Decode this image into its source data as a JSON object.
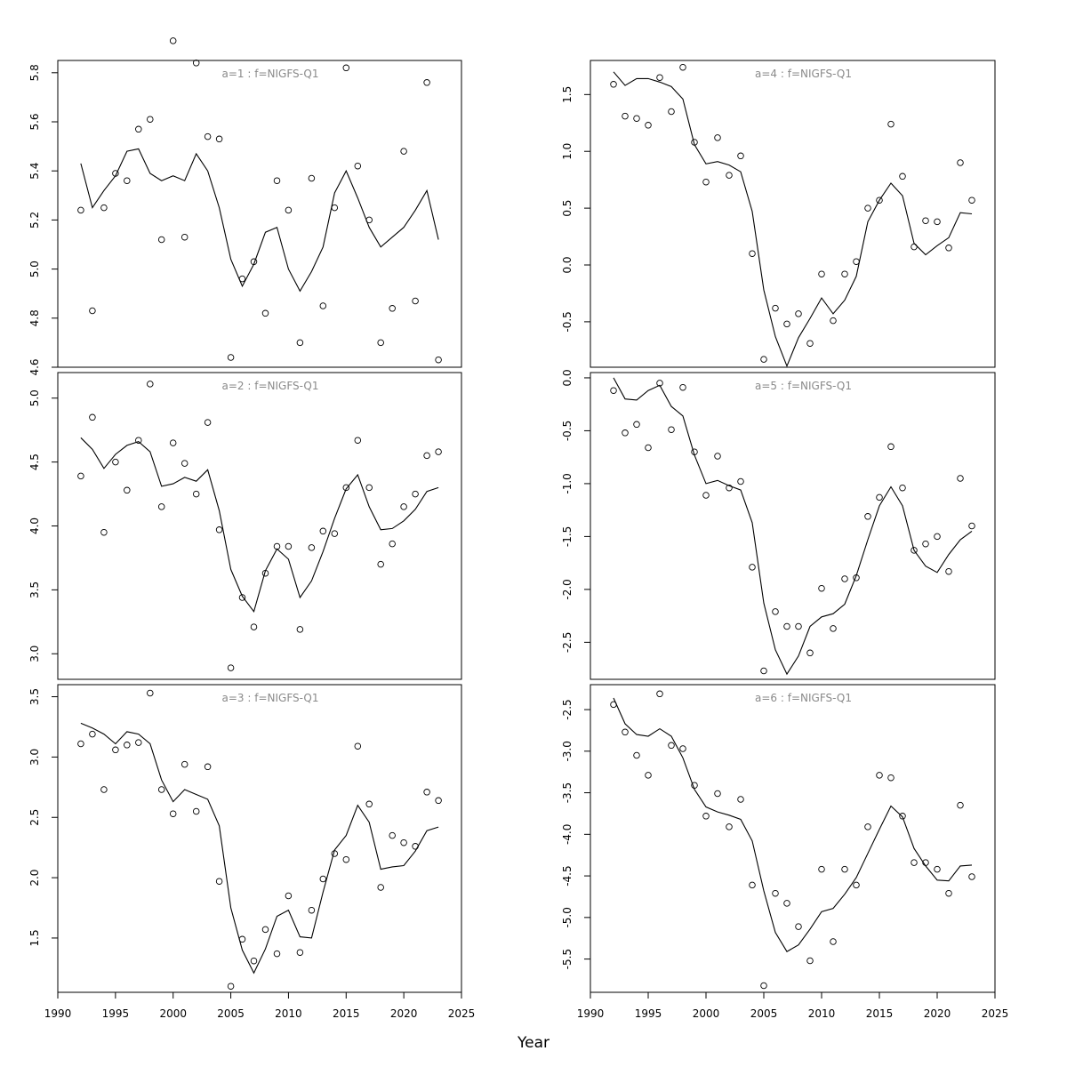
{
  "figure": {
    "xlabel": "Year"
  },
  "chart_data": [
    {
      "type": "line",
      "title": "a=1  :  f=NIGFS-Q1",
      "xlim": [
        1990,
        2025
      ],
      "ylim": [
        4.6,
        5.85
      ],
      "yticks": [
        4.6,
        4.8,
        5.0,
        5.2,
        5.4,
        5.6,
        5.8
      ],
      "xticks": [
        1990,
        1995,
        2000,
        2005,
        2010,
        2015,
        2020,
        2025
      ],
      "x": [
        1992,
        1993,
        1994,
        1995,
        1996,
        1997,
        1998,
        1999,
        2000,
        2001,
        2002,
        2003,
        2004,
        2005,
        2006,
        2007,
        2008,
        2009,
        2010,
        2011,
        2012,
        2013,
        2014,
        2015,
        2016,
        2017,
        2018,
        2019,
        2020,
        2021,
        2022,
        2023
      ],
      "series": [
        {
          "style": "points",
          "values": [
            5.24,
            4.83,
            5.25,
            5.39,
            5.36,
            5.57,
            5.61,
            5.12,
            5.93,
            5.13,
            5.84,
            5.54,
            5.53,
            4.64,
            4.96,
            5.03,
            4.82,
            5.36,
            5.24,
            4.7,
            5.37,
            4.85,
            5.25,
            5.82,
            5.42,
            5.2,
            4.7,
            4.84,
            5.48,
            4.87,
            5.76,
            4.63
          ]
        },
        {
          "style": "line",
          "values": [
            5.43,
            5.25,
            5.32,
            5.38,
            5.48,
            5.49,
            5.39,
            5.36,
            5.38,
            5.36,
            5.47,
            5.4,
            5.25,
            5.04,
            4.93,
            5.02,
            5.15,
            5.17,
            5.0,
            4.91,
            4.99,
            5.09,
            5.31,
            5.4,
            5.29,
            5.17,
            5.09,
            5.13,
            5.17,
            5.24,
            5.32,
            5.12
          ]
        }
      ]
    },
    {
      "type": "line",
      "title": "a=2  :  f=NIGFS-Q1",
      "xlim": [
        1990,
        2025
      ],
      "ylim": [
        2.8,
        5.2
      ],
      "yticks": [
        3.0,
        3.5,
        4.0,
        4.5,
        5.0
      ],
      "xticks": [
        1990,
        1995,
        2000,
        2005,
        2010,
        2015,
        2020,
        2025
      ],
      "x": [
        1992,
        1993,
        1994,
        1995,
        1996,
        1997,
        1998,
        1999,
        2000,
        2001,
        2002,
        2003,
        2004,
        2005,
        2006,
        2007,
        2008,
        2009,
        2010,
        2011,
        2012,
        2013,
        2014,
        2015,
        2016,
        2017,
        2018,
        2019,
        2020,
        2021,
        2022,
        2023
      ],
      "series": [
        {
          "style": "points",
          "values": [
            4.39,
            4.85,
            3.95,
            4.5,
            4.28,
            4.67,
            5.11,
            4.15,
            4.65,
            4.49,
            4.25,
            4.81,
            3.97,
            2.89,
            3.44,
            3.21,
            3.63,
            3.84,
            3.84,
            3.19,
            3.83,
            3.96,
            3.94,
            4.3,
            4.67,
            4.3,
            3.7,
            3.86,
            4.15,
            4.25,
            4.55,
            4.58
          ]
        },
        {
          "style": "line",
          "values": [
            4.69,
            4.6,
            4.45,
            4.56,
            4.63,
            4.66,
            4.58,
            4.31,
            4.33,
            4.38,
            4.35,
            4.44,
            4.12,
            3.66,
            3.45,
            3.33,
            3.65,
            3.82,
            3.74,
            3.44,
            3.57,
            3.8,
            4.06,
            4.29,
            4.4,
            4.15,
            3.97,
            3.98,
            4.04,
            4.13,
            4.27,
            4.3
          ]
        }
      ]
    },
    {
      "type": "line",
      "title": "a=3  :  f=NIGFS-Q1",
      "xlim": [
        1990,
        2025
      ],
      "ylim": [
        1.05,
        3.6
      ],
      "yticks": [
        1.5,
        2.0,
        2.5,
        3.0,
        3.5
      ],
      "xticks": [
        1990,
        1995,
        2000,
        2005,
        2010,
        2015,
        2020,
        2025
      ],
      "x": [
        1992,
        1993,
        1994,
        1995,
        1996,
        1997,
        1998,
        1999,
        2000,
        2001,
        2002,
        2003,
        2004,
        2005,
        2006,
        2007,
        2008,
        2009,
        2010,
        2011,
        2012,
        2013,
        2014,
        2015,
        2016,
        2017,
        2018,
        2019,
        2020,
        2021,
        2022,
        2023
      ],
      "series": [
        {
          "style": "points",
          "values": [
            3.11,
            3.19,
            2.73,
            3.06,
            3.1,
            3.12,
            3.53,
            2.73,
            2.53,
            2.94,
            2.55,
            2.92,
            1.97,
            1.1,
            1.49,
            1.31,
            1.57,
            1.37,
            1.85,
            1.38,
            1.73,
            1.99,
            2.2,
            2.15,
            3.09,
            2.61,
            1.92,
            2.35,
            2.29,
            2.26,
            2.71,
            2.64
          ]
        },
        {
          "style": "line",
          "values": [
            3.28,
            3.24,
            3.19,
            3.11,
            3.21,
            3.19,
            3.11,
            2.81,
            2.63,
            2.73,
            2.69,
            2.65,
            2.43,
            1.75,
            1.4,
            1.21,
            1.41,
            1.68,
            1.73,
            1.51,
            1.5,
            1.88,
            2.23,
            2.35,
            2.6,
            2.46,
            2.07,
            2.09,
            2.1,
            2.22,
            2.39,
            2.42
          ]
        }
      ]
    },
    {
      "type": "line",
      "title": "a=4  :  f=NIGFS-Q1",
      "xlim": [
        1990,
        2025
      ],
      "ylim": [
        -0.9,
        1.8
      ],
      "yticks": [
        -0.5,
        0.0,
        0.5,
        1.0,
        1.5
      ],
      "xticks": [
        1990,
        1995,
        2000,
        2005,
        2010,
        2015,
        2020,
        2025
      ],
      "x": [
        1992,
        1993,
        1994,
        1995,
        1996,
        1997,
        1998,
        1999,
        2000,
        2001,
        2002,
        2003,
        2004,
        2005,
        2006,
        2007,
        2008,
        2009,
        2010,
        2011,
        2012,
        2013,
        2014,
        2015,
        2016,
        2017,
        2018,
        2019,
        2020,
        2021,
        2022,
        2023
      ],
      "series": [
        {
          "style": "points",
          "values": [
            1.59,
            1.31,
            1.29,
            1.23,
            1.65,
            1.35,
            1.74,
            1.08,
            0.73,
            1.12,
            0.79,
            0.96,
            0.1,
            -0.83,
            -0.38,
            -0.52,
            -0.43,
            -0.69,
            -0.08,
            -0.49,
            -0.08,
            0.03,
            0.5,
            0.57,
            1.24,
            0.78,
            0.16,
            0.39,
            0.38,
            0.15,
            0.9,
            0.57
          ]
        },
        {
          "style": "line",
          "values": [
            1.7,
            1.58,
            1.64,
            1.64,
            1.61,
            1.57,
            1.46,
            1.06,
            0.89,
            0.91,
            0.88,
            0.82,
            0.47,
            -0.22,
            -0.63,
            -0.89,
            -0.64,
            -0.47,
            -0.29,
            -0.43,
            -0.31,
            -0.1,
            0.38,
            0.57,
            0.72,
            0.61,
            0.19,
            0.09,
            0.17,
            0.24,
            0.46,
            0.45
          ]
        }
      ]
    },
    {
      "type": "line",
      "title": "a=5  :  f=NIGFS-Q1",
      "xlim": [
        1990,
        2025
      ],
      "ylim": [
        -2.85,
        0.05
      ],
      "yticks": [
        -2.5,
        -2.0,
        -1.5,
        -1.0,
        -0.5,
        0.0
      ],
      "xticks": [
        1990,
        1995,
        2000,
        2005,
        2010,
        2015,
        2020,
        2025
      ],
      "x": [
        1992,
        1993,
        1994,
        1995,
        1996,
        1997,
        1998,
        1999,
        2000,
        2001,
        2002,
        2003,
        2004,
        2005,
        2006,
        2007,
        2008,
        2009,
        2010,
        2011,
        2012,
        2013,
        2014,
        2015,
        2016,
        2017,
        2018,
        2019,
        2020,
        2021,
        2022,
        2023
      ],
      "series": [
        {
          "style": "points",
          "values": [
            -0.12,
            -0.52,
            -0.44,
            -0.66,
            -0.05,
            -0.49,
            -0.09,
            -0.7,
            -1.11,
            -0.74,
            -1.04,
            -0.98,
            -1.79,
            -2.77,
            -2.21,
            -2.35,
            -2.35,
            -2.6,
            -1.99,
            -2.37,
            -1.9,
            -1.89,
            -1.31,
            -1.13,
            -0.65,
            -1.04,
            -1.63,
            -1.57,
            -1.5,
            -1.83,
            -0.95,
            -1.4
          ]
        },
        {
          "style": "line",
          "values": [
            0.0,
            -0.2,
            -0.21,
            -0.12,
            -0.07,
            -0.27,
            -0.36,
            -0.73,
            -1.0,
            -0.97,
            -1.02,
            -1.06,
            -1.37,
            -2.13,
            -2.57,
            -2.8,
            -2.63,
            -2.35,
            -2.26,
            -2.23,
            -2.14,
            -1.87,
            -1.53,
            -1.21,
            -1.03,
            -1.21,
            -1.63,
            -1.78,
            -1.84,
            -1.67,
            -1.53,
            -1.45
          ]
        }
      ]
    },
    {
      "type": "line",
      "title": "a=6  :  f=NIGFS-Q1",
      "xlim": [
        1990,
        2025
      ],
      "ylim": [
        -5.9,
        -2.2
      ],
      "yticks": [
        -5.5,
        -5.0,
        -4.5,
        -4.0,
        -3.5,
        -3.0,
        -2.5
      ],
      "xticks": [
        1990,
        1995,
        2000,
        2005,
        2010,
        2015,
        2020,
        2025
      ],
      "x": [
        1992,
        1993,
        1994,
        1995,
        1996,
        1997,
        1998,
        1999,
        2000,
        2001,
        2002,
        2003,
        2004,
        2005,
        2006,
        2007,
        2008,
        2009,
        2010,
        2011,
        2012,
        2013,
        2014,
        2015,
        2016,
        2017,
        2018,
        2019,
        2020,
        2021,
        2022,
        2023
      ],
      "series": [
        {
          "style": "points",
          "values": [
            -2.44,
            -2.77,
            -3.05,
            -3.29,
            -2.31,
            -2.93,
            -2.97,
            -3.41,
            -3.78,
            -3.51,
            -3.91,
            -3.58,
            -4.61,
            -5.82,
            -4.71,
            -4.83,
            -5.11,
            -5.52,
            -4.42,
            -5.29,
            -4.42,
            -4.61,
            -3.91,
            -3.29,
            -3.32,
            -3.78,
            -4.34,
            -4.34,
            -4.42,
            -4.71,
            -3.65,
            -4.51
          ]
        },
        {
          "style": "line",
          "values": [
            -2.36,
            -2.67,
            -2.8,
            -2.82,
            -2.73,
            -2.82,
            -3.08,
            -3.46,
            -3.67,
            -3.73,
            -3.77,
            -3.82,
            -4.08,
            -4.68,
            -5.18,
            -5.41,
            -5.33,
            -5.14,
            -4.93,
            -4.89,
            -4.72,
            -4.52,
            -4.23,
            -3.94,
            -3.66,
            -3.79,
            -4.17,
            -4.38,
            -4.55,
            -4.56,
            -4.38,
            -4.37
          ]
        }
      ]
    }
  ]
}
